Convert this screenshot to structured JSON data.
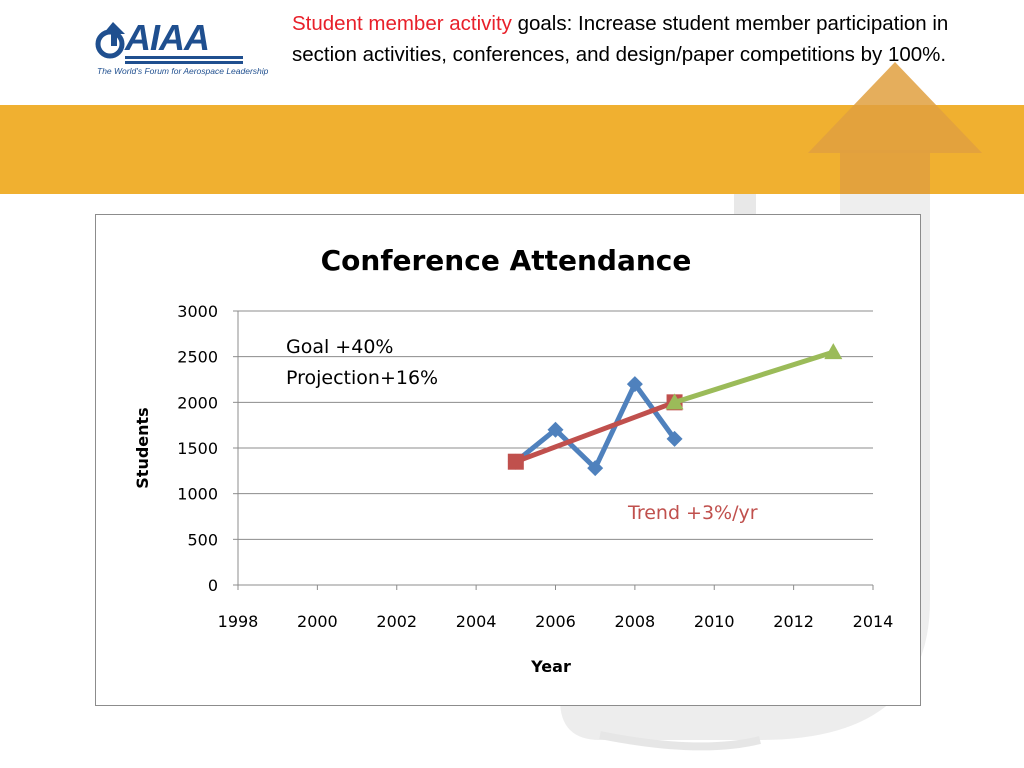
{
  "logo": {
    "text": "AIAA",
    "tagline": "The World's Forum for Aerospace Leadership",
    "color": "#1f4f8f"
  },
  "header": {
    "highlight": "Student member activity",
    "text": " goals:  Increase student member participation in section activities, conferences, and design/paper competitions by 100%.",
    "highlight_color": "#e8202a"
  },
  "theme": {
    "band_color": "#f0b030",
    "arrow_color": "#d9d9d9"
  },
  "chart_data": {
    "type": "line",
    "title": "Conference Attendance",
    "xlabel": "Year",
    "ylabel": "Students",
    "xlim": [
      1998,
      2014
    ],
    "ylim": [
      0,
      3000
    ],
    "xticks": [
      1998,
      2000,
      2002,
      2004,
      2006,
      2008,
      2010,
      2012,
      2014
    ],
    "yticks": [
      0,
      500,
      1000,
      1500,
      2000,
      2500,
      3000
    ],
    "grid": "horizontal",
    "legend": "none",
    "series": [
      {
        "color": "#4f81bd",
        "marker": "diamond",
        "points": [
          [
            2005,
            1350
          ],
          [
            2006,
            1700
          ],
          [
            2007,
            1280
          ],
          [
            2008,
            2200
          ],
          [
            2009,
            1600
          ]
        ]
      },
      {
        "color": "#c0504d",
        "marker": "square",
        "points": [
          [
            2005,
            1350
          ],
          [
            2009,
            2000
          ]
        ]
      },
      {
        "color": "#9bbb59",
        "marker": "triangle",
        "points": [
          [
            2009,
            2000
          ],
          [
            2013,
            2550
          ]
        ]
      }
    ],
    "annotations": [
      {
        "text": "Goal +40%",
        "color": "#000000"
      },
      {
        "text": "Projection+16%",
        "color": "#000000"
      },
      {
        "text": "Trend +3%/yr",
        "color": "#c0504d"
      }
    ]
  }
}
